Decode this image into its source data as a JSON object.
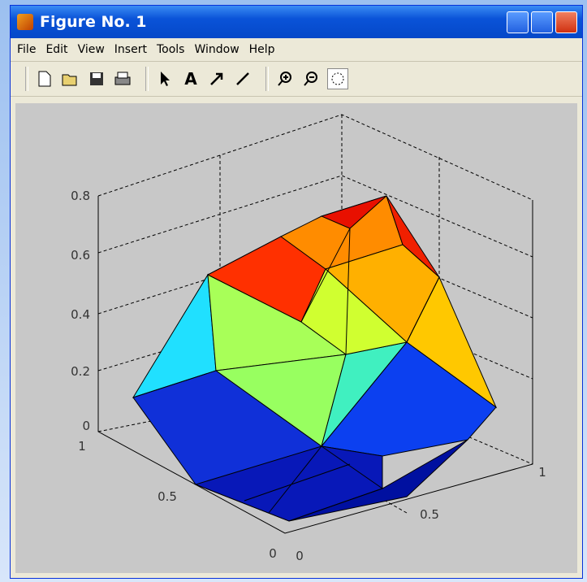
{
  "window": {
    "title": "Figure No. 1"
  },
  "menu": [
    "File",
    "Edit",
    "View",
    "Insert",
    "Tools",
    "Window",
    "Help"
  ],
  "toolbar": {
    "text_tool": "A"
  },
  "axes": {
    "z_ticks": [
      "0.8",
      "0.6",
      "0.4",
      "0.2",
      "0"
    ],
    "y_ticks": [
      "1",
      "0.5",
      "0"
    ],
    "x_ticks": [
      "0",
      "0.5",
      "1"
    ]
  }
}
